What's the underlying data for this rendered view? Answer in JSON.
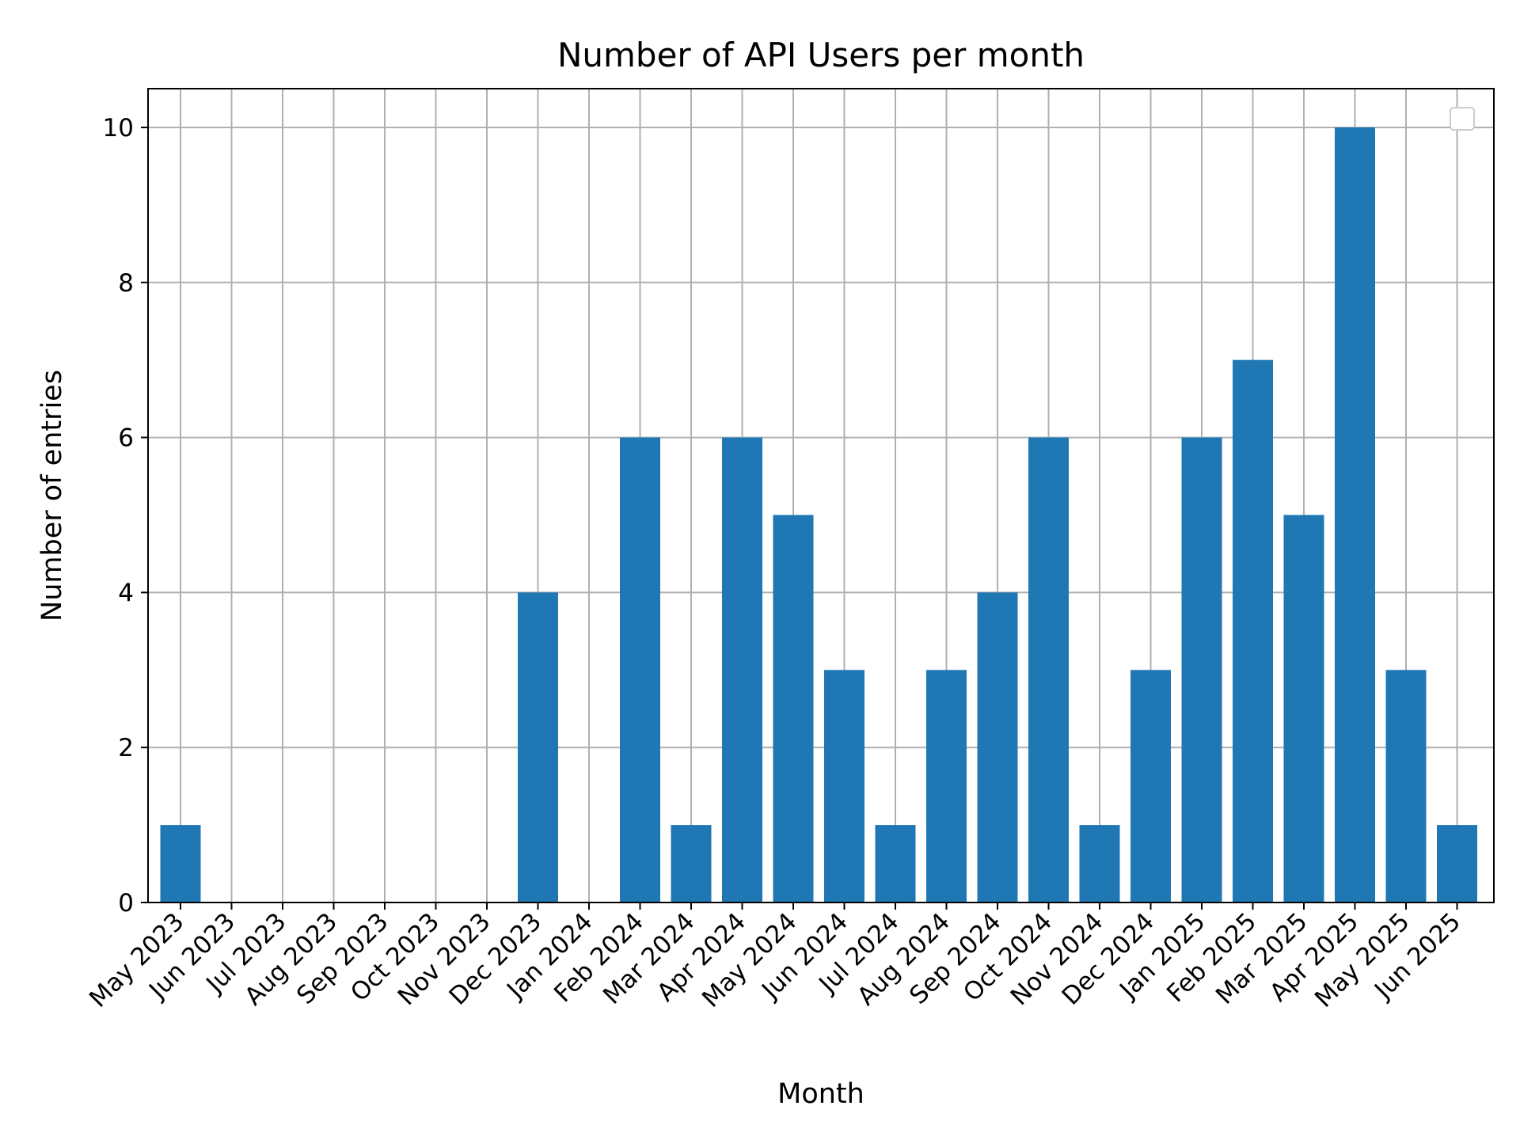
{
  "chart_data": {
    "type": "bar",
    "title": "Number of API Users per month",
    "xlabel": "Month",
    "ylabel": "Number of entries",
    "categories": [
      "May 2023",
      "Jun 2023",
      "Jul 2023",
      "Aug 2023",
      "Sep 2023",
      "Oct 2023",
      "Nov 2023",
      "Dec 2023",
      "Jan 2024",
      "Feb 2024",
      "Mar 2024",
      "Apr 2024",
      "May 2024",
      "Jun 2024",
      "Jul 2024",
      "Aug 2024",
      "Sep 2024",
      "Oct 2024",
      "Nov 2024",
      "Dec 2024",
      "Jan 2025",
      "Feb 2025",
      "Mar 2025",
      "Apr 2025",
      "May 2025",
      "Jun 2025"
    ],
    "values": [
      1,
      0,
      0,
      0,
      0,
      0,
      0,
      4,
      0,
      6,
      1,
      6,
      5,
      3,
      1,
      3,
      4,
      6,
      1,
      3,
      6,
      7,
      5,
      10,
      3,
      1
    ],
    "ylim": [
      0,
      10.5
    ],
    "yticks": [
      "0",
      "2",
      "4",
      "6",
      "8",
      "10"
    ],
    "grid": true,
    "legend": {
      "position": "top-right",
      "entries": []
    },
    "colors": {
      "bar": "#1f77b4",
      "grid": "#b0b0b0",
      "axis": "#000000"
    }
  }
}
